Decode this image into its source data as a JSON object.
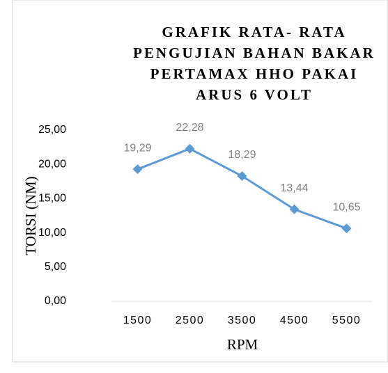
{
  "chart_data": {
    "type": "line",
    "title": [
      "GRAFIK RATA- RATA",
      "PENGUJIAN BAHAN BAKAR",
      "PERTAMAX HHO PAKAI",
      "ARUS 6 VOLT"
    ],
    "x_label": "RPM",
    "y_label": "TORSI (NM)",
    "categories": [
      "1500",
      "2500",
      "3500",
      "4500",
      "5500"
    ],
    "values": [
      19.29,
      22.28,
      18.29,
      13.44,
      10.65
    ],
    "value_labels": [
      "19,29",
      "22,28",
      "18,29",
      "13,44",
      "10,65"
    ],
    "color": "#5b9bd5",
    "ylim": [
      0,
      25
    ],
    "yticks": [
      {
        "value": 0,
        "label": "0,00"
      },
      {
        "value": 5,
        "label": "5,00"
      },
      {
        "value": 10,
        "label": "10,00"
      },
      {
        "value": 15,
        "label": "15,00"
      },
      {
        "value": 20,
        "label": "20,00"
      },
      {
        "value": 25,
        "label": "25,00"
      }
    ],
    "grid": false
  }
}
